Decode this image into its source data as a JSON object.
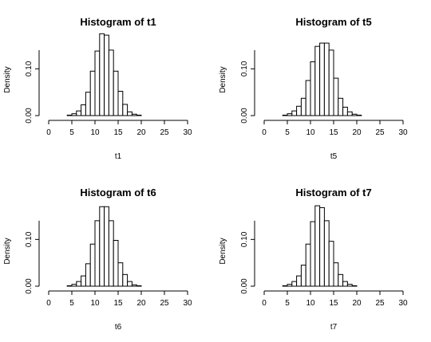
{
  "chart_data": [
    {
      "type": "bar",
      "title": "Histogram of t1",
      "xlabel": "t1",
      "ylabel": "Density",
      "xlim": [
        0,
        30
      ],
      "ylim": [
        0,
        0.15
      ],
      "x_ticks": [
        "0",
        "5",
        "10",
        "15",
        "20",
        "25",
        "30"
      ],
      "y_ticks": [
        "0.00",
        "0.10"
      ],
      "bin_edges": [
        0,
        1,
        2,
        3,
        4,
        5,
        6,
        7,
        8,
        9,
        10,
        11,
        12,
        13,
        14,
        15,
        16,
        17,
        18,
        19,
        20,
        21,
        22,
        23,
        24,
        25,
        26,
        27,
        28,
        29,
        30
      ],
      "values": [
        0,
        0,
        0,
        0,
        0.001,
        0.004,
        0.01,
        0.023,
        0.05,
        0.095,
        0.138,
        0.175,
        0.172,
        0.14,
        0.095,
        0.052,
        0.024,
        0.008,
        0.003,
        0.001,
        0,
        0,
        0,
        0,
        0,
        0,
        0,
        0,
        0,
        0
      ]
    },
    {
      "type": "bar",
      "title": "Histogram of t5",
      "xlabel": "t5",
      "ylabel": "Density",
      "xlim": [
        0,
        30
      ],
      "ylim": [
        0,
        0.15
      ],
      "x_ticks": [
        "0",
        "5",
        "10",
        "15",
        "20",
        "25",
        "30"
      ],
      "y_ticks": [
        "0.00",
        "0.10"
      ],
      "bin_edges": [
        0,
        1,
        2,
        3,
        4,
        5,
        6,
        7,
        8,
        9,
        10,
        11,
        12,
        13,
        14,
        15,
        16,
        17,
        18,
        19,
        20,
        21,
        22,
        23,
        24,
        25,
        26,
        27,
        28,
        29,
        30
      ],
      "values": [
        0,
        0,
        0,
        0,
        0.001,
        0.004,
        0.01,
        0.02,
        0.037,
        0.075,
        0.115,
        0.148,
        0.155,
        0.155,
        0.14,
        0.08,
        0.037,
        0.018,
        0.008,
        0.003,
        0.001,
        0,
        0,
        0,
        0,
        0,
        0,
        0,
        0,
        0
      ]
    },
    {
      "type": "bar",
      "title": "Histogram of t6",
      "xlabel": "t6",
      "ylabel": "Density",
      "xlim": [
        0,
        30
      ],
      "ylim": [
        0,
        0.15
      ],
      "x_ticks": [
        "0",
        "5",
        "10",
        "15",
        "20",
        "25",
        "30"
      ],
      "y_ticks": [
        "0.00",
        "0.10"
      ],
      "bin_edges": [
        0,
        1,
        2,
        3,
        4,
        5,
        6,
        7,
        8,
        9,
        10,
        11,
        12,
        13,
        14,
        15,
        16,
        17,
        18,
        19,
        20,
        21,
        22,
        23,
        24,
        25,
        26,
        27,
        28,
        29,
        30
      ],
      "values": [
        0,
        0,
        0,
        0,
        0.001,
        0.004,
        0.01,
        0.022,
        0.048,
        0.09,
        0.14,
        0.17,
        0.17,
        0.14,
        0.098,
        0.05,
        0.025,
        0.01,
        0.003,
        0.001,
        0,
        0,
        0,
        0,
        0,
        0,
        0,
        0,
        0,
        0
      ]
    },
    {
      "type": "bar",
      "title": "Histogram of t7",
      "xlabel": "t7",
      "ylabel": "Density",
      "xlim": [
        0,
        30
      ],
      "ylim": [
        0,
        0.15
      ],
      "x_ticks": [
        "0",
        "5",
        "10",
        "15",
        "20",
        "25",
        "30"
      ],
      "y_ticks": [
        "0.00",
        "0.10"
      ],
      "bin_edges": [
        0,
        1,
        2,
        3,
        4,
        5,
        6,
        7,
        8,
        9,
        10,
        11,
        12,
        13,
        14,
        15,
        16,
        17,
        18,
        19,
        20,
        21,
        22,
        23,
        24,
        25,
        26,
        27,
        28,
        29,
        30
      ],
      "values": [
        0,
        0,
        0,
        0,
        0.001,
        0.004,
        0.01,
        0.022,
        0.045,
        0.09,
        0.138,
        0.172,
        0.168,
        0.14,
        0.096,
        0.05,
        0.025,
        0.01,
        0.004,
        0.001,
        0,
        0,
        0,
        0,
        0,
        0,
        0,
        0,
        0,
        0
      ]
    }
  ]
}
